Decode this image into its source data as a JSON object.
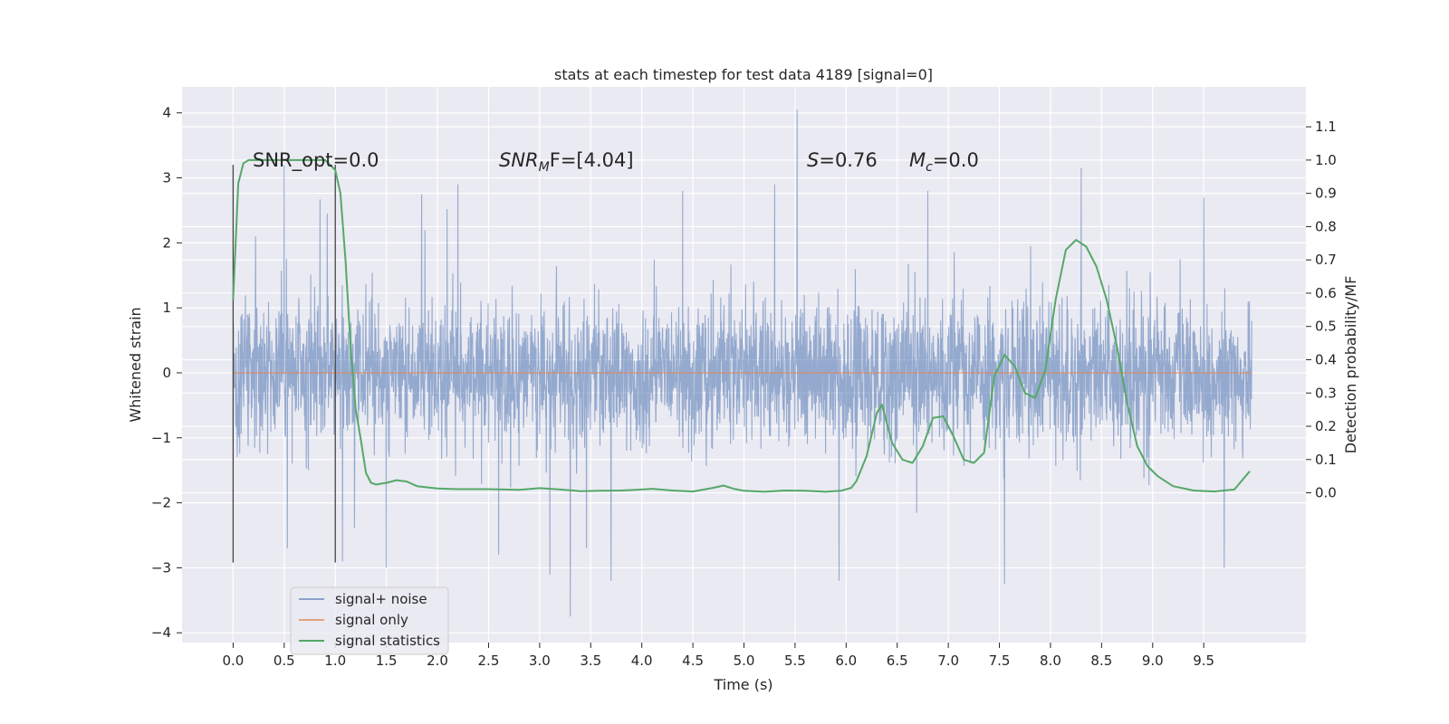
{
  "chart_data": {
    "type": "line",
    "title": "stats at each timestep for test data 4189 [signal=0]",
    "xlabel": "Time (s)",
    "ylabel": "Whitened strain",
    "ylabel_right": "Detection probability/MF",
    "xlim": [
      -0.5,
      10.5
    ],
    "ylim": [
      -4.15,
      4.4
    ],
    "ylim_right": [
      -0.45,
      1.22
    ],
    "x_ticks": [
      "0.0",
      "0.5",
      "1.0",
      "1.5",
      "2.0",
      "2.5",
      "3.0",
      "3.5",
      "4.0",
      "4.5",
      "5.0",
      "5.5",
      "6.0",
      "6.5",
      "7.0",
      "7.5",
      "8.0",
      "8.5",
      "9.0",
      "9.5"
    ],
    "y_ticks": [
      "4",
      "3",
      "2",
      "1",
      "0",
      "−1",
      "−2",
      "−3",
      "−4"
    ],
    "y_ticks_right": [
      "1.1",
      "1.0",
      "0.9",
      "0.8",
      "0.7",
      "0.6",
      "0.5",
      "0.4",
      "0.3",
      "0.2",
      "0.1",
      "0.0"
    ],
    "grid": true,
    "legend_position": "lower-left",
    "annotations": {
      "snr_opt": "SNR_opt=0.0",
      "snr_mf_main": "SNR",
      "snr_mf_sub": "M",
      "snr_mf_rest": "F=[4.04]",
      "s_main": "S",
      "s_rest": "=0.76",
      "mc_main": "M",
      "mc_sub": "c",
      "mc_rest": "=0.0"
    },
    "vertical_markers_x": [
      0.0,
      1.0
    ],
    "series": [
      {
        "name": "signal+ noise",
        "color": "#4c72b0",
        "axis": "left",
        "description_envelope": {
          "x_range": [
            0.0,
            9.97
          ],
          "typical_band": [
            -1.7,
            2.0
          ],
          "spikes": [
            {
              "x": 0.22,
              "y": 2.1
            },
            {
              "x": 0.5,
              "y": 3.2
            },
            {
              "x": 0.92,
              "y": 2.45
            },
            {
              "x": 1.07,
              "y": -2.9
            },
            {
              "x": 1.5,
              "y": -3.0
            },
            {
              "x": 2.2,
              "y": 2.9
            },
            {
              "x": 2.6,
              "y": -2.8
            },
            {
              "x": 3.1,
              "y": -3.1
            },
            {
              "x": 3.3,
              "y": -3.75
            },
            {
              "x": 3.7,
              "y": -3.2
            },
            {
              "x": 4.4,
              "y": 2.8
            },
            {
              "x": 5.3,
              "y": 2.9
            },
            {
              "x": 5.52,
              "y": 4.05
            },
            {
              "x": 5.93,
              "y": -3.2
            },
            {
              "x": 6.8,
              "y": 2.8
            },
            {
              "x": 7.55,
              "y": -3.25
            },
            {
              "x": 8.3,
              "y": 3.15
            },
            {
              "x": 9.5,
              "y": 2.7
            },
            {
              "x": 9.7,
              "y": -3.0
            }
          ]
        }
      },
      {
        "name": "signal only",
        "color": "#dd8452",
        "axis": "left",
        "x": [
          0.0,
          9.97
        ],
        "y": [
          0.0,
          0.0
        ]
      },
      {
        "name": "signal statistics",
        "color": "#55a868",
        "axis": "right",
        "x": [
          0.0,
          0.05,
          0.1,
          0.15,
          0.25,
          0.35,
          0.5,
          0.7,
          0.9,
          1.0,
          1.05,
          1.1,
          1.15,
          1.2,
          1.25,
          1.3,
          1.35,
          1.4,
          1.5,
          1.6,
          1.7,
          1.8,
          2.0,
          2.2,
          2.5,
          2.8,
          3.0,
          3.2,
          3.4,
          3.6,
          3.8,
          4.0,
          4.1,
          4.3,
          4.5,
          4.7,
          4.8,
          4.9,
          5.0,
          5.2,
          5.4,
          5.6,
          5.8,
          5.95,
          6.05,
          6.1,
          6.2,
          6.3,
          6.35,
          6.45,
          6.55,
          6.65,
          6.75,
          6.85,
          6.95,
          7.05,
          7.15,
          7.25,
          7.35,
          7.45,
          7.55,
          7.65,
          7.75,
          7.85,
          7.95,
          8.05,
          8.15,
          8.25,
          8.35,
          8.45,
          8.55,
          8.65,
          8.75,
          8.85,
          8.95,
          9.05,
          9.2,
          9.4,
          9.6,
          9.8,
          9.95
        ],
        "y": [
          0.58,
          0.93,
          0.99,
          1.0,
          1.0,
          1.0,
          1.0,
          1.0,
          1.0,
          0.97,
          0.9,
          0.7,
          0.44,
          0.25,
          0.16,
          0.06,
          0.03,
          0.025,
          0.03,
          0.038,
          0.034,
          0.02,
          0.013,
          0.011,
          0.011,
          0.009,
          0.014,
          0.01,
          0.005,
          0.006,
          0.007,
          0.01,
          0.012,
          0.007,
          0.004,
          0.015,
          0.022,
          0.012,
          0.006,
          0.003,
          0.007,
          0.006,
          0.003,
          0.006,
          0.015,
          0.035,
          0.11,
          0.24,
          0.265,
          0.15,
          0.1,
          0.09,
          0.14,
          0.225,
          0.23,
          0.17,
          0.1,
          0.09,
          0.12,
          0.35,
          0.415,
          0.38,
          0.3,
          0.285,
          0.37,
          0.58,
          0.73,
          0.76,
          0.74,
          0.68,
          0.58,
          0.44,
          0.27,
          0.14,
          0.08,
          0.05,
          0.02,
          0.007,
          0.004,
          0.01,
          0.065
        ]
      }
    ]
  }
}
